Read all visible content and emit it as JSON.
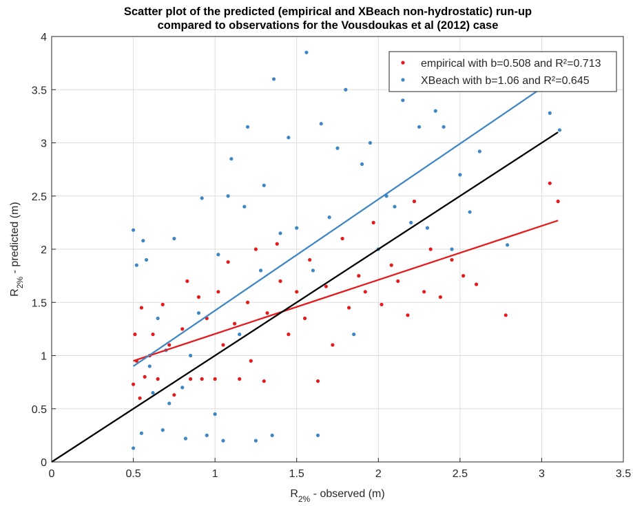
{
  "chart_data": {
    "type": "scatter",
    "title": [
      "Scatter plot of the predicted (empirical and XBeach non-hydrostatic) run-up",
      "compared to observations for the Vousdoukas et al (2012) case"
    ],
    "xlabel": [
      "R",
      "2%",
      " - observed (m)"
    ],
    "ylabel": [
      "R",
      "2%",
      " - predicted (m)"
    ],
    "xlim": [
      0,
      3.5
    ],
    "ylim": [
      0,
      4
    ],
    "xticks": [
      0,
      0.5,
      1,
      1.5,
      2,
      2.5,
      3,
      3.5
    ],
    "yticks": [
      0,
      0.5,
      1,
      1.5,
      2,
      2.5,
      3,
      3.5,
      4
    ],
    "grid": true,
    "legend": "upper right",
    "series": [
      {
        "name": "empirical with b=0.508 and R²=0.713",
        "color": "#e41a1c",
        "x": [
          0.5,
          0.51,
          0.52,
          0.54,
          0.55,
          0.57,
          0.6,
          0.62,
          0.65,
          0.68,
          0.72,
          0.75,
          0.8,
          0.83,
          0.85,
          0.9,
          0.92,
          0.95,
          1.0,
          1.02,
          1.05,
          1.08,
          1.12,
          1.15,
          1.2,
          1.22,
          1.25,
          1.3,
          1.32,
          1.38,
          1.4,
          1.45,
          1.5,
          1.55,
          1.58,
          1.63,
          1.68,
          1.72,
          1.78,
          1.82,
          1.88,
          1.92,
          1.97,
          2.02,
          2.08,
          2.12,
          2.18,
          2.22,
          2.28,
          2.32,
          2.38,
          2.45,
          2.52,
          2.6,
          2.78,
          3.05,
          3.1
        ],
        "values": [
          0.73,
          1.2,
          0.95,
          0.6,
          1.45,
          0.8,
          1.0,
          1.2,
          0.78,
          1.48,
          1.1,
          0.63,
          1.25,
          1.7,
          0.78,
          1.55,
          0.78,
          1.35,
          0.78,
          1.6,
          1.1,
          1.88,
          1.3,
          0.78,
          1.5,
          0.95,
          2.0,
          0.76,
          1.4,
          2.05,
          1.7,
          1.2,
          1.6,
          1.35,
          1.9,
          0.76,
          1.65,
          1.1,
          2.1,
          1.45,
          1.75,
          1.6,
          2.25,
          1.48,
          1.85,
          1.7,
          1.38,
          2.45,
          1.6,
          2.0,
          1.55,
          1.9,
          1.75,
          1.67,
          1.38,
          2.62,
          2.45
        ]
      },
      {
        "name": "XBeach with b=1.06 and R²=0.645",
        "color": "#3f86c4",
        "x": [
          0.5,
          0.5,
          0.52,
          0.55,
          0.56,
          0.58,
          0.6,
          0.62,
          0.65,
          0.68,
          0.7,
          0.72,
          0.75,
          0.8,
          0.82,
          0.85,
          0.9,
          0.92,
          0.95,
          1.0,
          1.02,
          1.05,
          1.08,
          1.1,
          1.15,
          1.18,
          1.2,
          1.25,
          1.28,
          1.3,
          1.35,
          1.36,
          1.4,
          1.45,
          1.5,
          1.56,
          1.6,
          1.63,
          1.65,
          1.7,
          1.75,
          1.8,
          1.85,
          1.9,
          1.95,
          2.0,
          2.05,
          2.1,
          2.15,
          2.2,
          2.25,
          2.3,
          2.35,
          2.4,
          2.45,
          2.5,
          2.56,
          2.62,
          2.79,
          3.05,
          3.11
        ],
        "values": [
          0.13,
          2.18,
          1.85,
          0.27,
          2.08,
          1.9,
          0.9,
          0.65,
          1.35,
          0.3,
          1.05,
          0.55,
          2.1,
          0.7,
          0.22,
          1.0,
          1.4,
          2.48,
          0.25,
          0.45,
          1.95,
          0.2,
          2.5,
          2.85,
          1.2,
          2.4,
          3.15,
          0.2,
          1.8,
          2.6,
          0.25,
          3.6,
          2.15,
          3.05,
          2.2,
          3.85,
          1.8,
          0.25,
          3.18,
          2.3,
          2.95,
          3.5,
          1.2,
          2.8,
          3.0,
          2.0,
          2.5,
          2.4,
          3.4,
          2.25,
          3.15,
          2.2,
          3.3,
          3.15,
          2.0,
          2.7,
          2.35,
          2.92,
          2.04,
          3.28,
          3.12
        ]
      }
    ],
    "lines": [
      {
        "color": "#e41a1c",
        "x": [
          0.5,
          3.1
        ],
        "values": [
          0.95,
          2.27
        ]
      },
      {
        "color": "#3f86c4",
        "x": [
          0.5,
          3.1
        ],
        "values": [
          0.9,
          3.62
        ]
      },
      {
        "color": "#000000",
        "x": [
          0,
          3.1
        ],
        "values": [
          0,
          3.1
        ]
      }
    ]
  }
}
